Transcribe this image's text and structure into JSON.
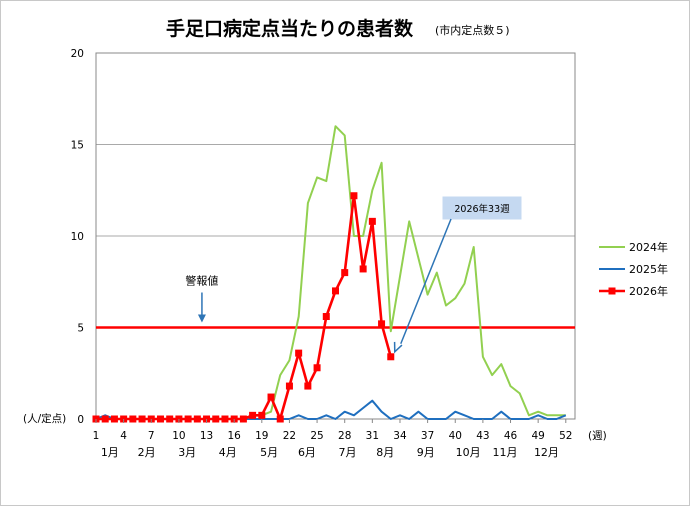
{
  "chart_data": {
    "type": "line",
    "title": "手足口病定点当たりの患者数",
    "subtitle": "(市内定点数５)",
    "ylabel": "(人/定点)",
    "xlabel": "(週)",
    "ylim": [
      0,
      20
    ],
    "yticks": [
      "0",
      "5",
      "10",
      "15",
      "20"
    ],
    "xlim": [
      1,
      53
    ],
    "xticks": [
      {
        "week": 1,
        "label": "1"
      },
      {
        "week": 4,
        "label": "4"
      },
      {
        "week": 7,
        "label": "7"
      },
      {
        "week": 10,
        "label": "10"
      },
      {
        "week": 13,
        "label": "13"
      },
      {
        "week": 16,
        "label": "16"
      },
      {
        "week": 19,
        "label": "19"
      },
      {
        "week": 22,
        "label": "22"
      },
      {
        "week": 25,
        "label": "25"
      },
      {
        "week": 28,
        "label": "28"
      },
      {
        "week": 31,
        "label": "31"
      },
      {
        "week": 34,
        "label": "34"
      },
      {
        "week": 37,
        "label": "37"
      },
      {
        "week": 40,
        "label": "40"
      },
      {
        "week": 43,
        "label": "43"
      },
      {
        "week": 46,
        "label": "46"
      },
      {
        "week": 49,
        "label": "49"
      },
      {
        "week": 52,
        "label": "52"
      }
    ],
    "months": [
      {
        "label": "1月",
        "week": 2.5
      },
      {
        "label": "2月",
        "week": 6.5
      },
      {
        "label": "3月",
        "week": 10.9
      },
      {
        "label": "4月",
        "week": 15.3
      },
      {
        "label": "5月",
        "week": 19.8
      },
      {
        "label": "6月",
        "week": 23.9
      },
      {
        "label": "7月",
        "week": 28.3
      },
      {
        "label": "8月",
        "week": 32.4
      },
      {
        "label": "9月",
        "week": 36.8
      },
      {
        "label": "10月",
        "week": 41.4
      },
      {
        "label": "11月",
        "week": 45.4
      },
      {
        "label": "12月",
        "week": 49.9
      }
    ],
    "threshold": {
      "label": "警報値",
      "value": 5,
      "color": "#ff0000"
    },
    "annotation": {
      "label": "2026年33週",
      "week": 33,
      "value": 3.4
    },
    "legend_position": "right",
    "grid": true,
    "series": [
      {
        "name": "2024年",
        "color": "#92d050",
        "marker": false,
        "x": [
          1,
          2,
          3,
          4,
          5,
          6,
          7,
          8,
          9,
          10,
          11,
          12,
          13,
          14,
          15,
          16,
          17,
          18,
          19,
          20,
          21,
          22,
          23,
          24,
          25,
          26,
          27,
          28,
          29,
          30,
          31,
          32,
          33,
          34,
          35,
          36,
          37,
          38,
          39,
          40,
          41,
          42,
          43,
          44,
          45,
          46,
          47,
          48,
          49,
          50,
          51,
          52
        ],
        "values": [
          0,
          0,
          0,
          0,
          0,
          0,
          0,
          0,
          0,
          0,
          0,
          0,
          0,
          0,
          0,
          0,
          0,
          0.2,
          0.2,
          0.4,
          2.4,
          3.2,
          5.6,
          11.8,
          13.2,
          13.0,
          16.0,
          15.5,
          10.0,
          10.0,
          12.5,
          14.0,
          4.8,
          7.8,
          10.8,
          8.8,
          6.8,
          8.0,
          6.2,
          6.6,
          7.4,
          9.4,
          3.4,
          2.4,
          3.0,
          1.8,
          1.4,
          0.2,
          0.4,
          0.2,
          0.2,
          0.2
        ]
      },
      {
        "name": "2025年",
        "color": "#1f6fbf",
        "marker": false,
        "x": [
          1,
          2,
          3,
          4,
          5,
          6,
          7,
          8,
          9,
          10,
          11,
          12,
          13,
          14,
          15,
          16,
          17,
          18,
          19,
          20,
          21,
          22,
          23,
          24,
          25,
          26,
          27,
          28,
          29,
          30,
          31,
          32,
          33,
          34,
          35,
          36,
          37,
          38,
          39,
          40,
          41,
          42,
          43,
          44,
          45,
          46,
          47,
          48,
          49,
          50,
          51,
          52
        ],
        "values": [
          0,
          0.2,
          0,
          0,
          0,
          0,
          0,
          0,
          0,
          0,
          0,
          0,
          0,
          0,
          0,
          0,
          0,
          0,
          0,
          0,
          0,
          0,
          0.2,
          0,
          0,
          0.2,
          0,
          0.4,
          0.2,
          0.6,
          1.0,
          0.4,
          0,
          0.2,
          0,
          0.4,
          0,
          0,
          0,
          0.4,
          0.2,
          0,
          0,
          0,
          0.4,
          0,
          0,
          0,
          0.2,
          0,
          0,
          0.2
        ]
      },
      {
        "name": "2026年",
        "color": "#ff0000",
        "marker": true,
        "x": [
          1,
          2,
          3,
          4,
          5,
          6,
          7,
          8,
          9,
          10,
          11,
          12,
          13,
          14,
          15,
          16,
          17,
          18,
          19,
          20,
          21,
          22,
          23,
          24,
          25,
          26,
          27,
          28,
          29,
          30,
          31,
          32,
          33
        ],
        "values": [
          0,
          0,
          0,
          0,
          0,
          0,
          0,
          0,
          0,
          0,
          0,
          0,
          0,
          0,
          0,
          0,
          0,
          0.2,
          0.2,
          1.2,
          0,
          1.8,
          3.6,
          1.8,
          2.8,
          5.6,
          7.0,
          8.0,
          12.2,
          8.2,
          10.8,
          5.2,
          3.4
        ]
      }
    ]
  }
}
